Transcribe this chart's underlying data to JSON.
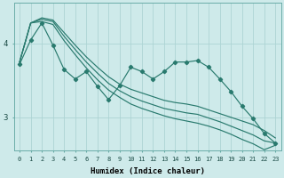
{
  "xlabel": "Humidex (Indice chaleur)",
  "background_color": "#ceeaea",
  "grid_color": "#add4d4",
  "line_color": "#297a6e",
  "x_ticks": [
    0,
    1,
    2,
    3,
    4,
    5,
    6,
    7,
    8,
    9,
    10,
    11,
    12,
    13,
    14,
    15,
    16,
    17,
    18,
    19,
    20,
    21,
    22,
    23
  ],
  "ylim_min": 2.55,
  "ylim_max": 4.55,
  "yticks": [
    3,
    4
  ],
  "smooth1": [
    3.75,
    4.28,
    4.35,
    4.32,
    4.15,
    3.98,
    3.82,
    3.68,
    3.55,
    3.45,
    3.38,
    3.33,
    3.28,
    3.23,
    3.2,
    3.18,
    3.15,
    3.1,
    3.05,
    3.0,
    2.95,
    2.9,
    2.82,
    2.72
  ],
  "smooth2": [
    3.75,
    4.28,
    4.33,
    4.3,
    4.1,
    3.92,
    3.75,
    3.6,
    3.46,
    3.36,
    3.28,
    3.22,
    3.17,
    3.12,
    3.09,
    3.06,
    3.04,
    2.99,
    2.94,
    2.88,
    2.82,
    2.76,
    2.68,
    2.65
  ],
  "smooth3": [
    3.75,
    4.28,
    4.3,
    4.26,
    4.04,
    3.85,
    3.67,
    3.51,
    3.37,
    3.27,
    3.18,
    3.12,
    3.07,
    3.02,
    2.98,
    2.95,
    2.92,
    2.88,
    2.83,
    2.77,
    2.7,
    2.64,
    2.56,
    2.62
  ],
  "zigzag": [
    3.72,
    4.05,
    4.28,
    3.98,
    3.65,
    3.52,
    3.62,
    3.42,
    3.24,
    3.43,
    3.68,
    3.62,
    3.52,
    3.62,
    3.75,
    3.75,
    3.77,
    3.68,
    3.52,
    3.35,
    3.15,
    2.98,
    2.78,
    2.65
  ]
}
